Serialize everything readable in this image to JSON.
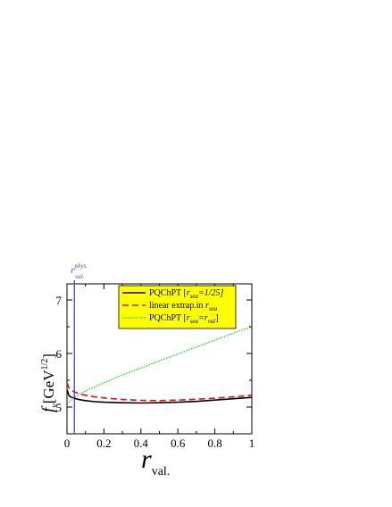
{
  "chart_data": {
    "type": "line",
    "xlabel": {
      "main": "r",
      "sub": "val."
    },
    "ylabel": {
      "f": "f",
      "sub": "v",
      "unit": "[GeV",
      "exp": "1/2",
      "close": "]"
    },
    "xlim": [
      0,
      1
    ],
    "ylim": [
      4.5,
      7.3
    ],
    "x_ticks": [
      0,
      0.2,
      0.4,
      0.6,
      0.8,
      1
    ],
    "x_tick_labels": [
      "0",
      "0.2",
      "0.4",
      "0.6",
      "0.8",
      "1"
    ],
    "y_ticks": [
      5,
      6,
      7
    ],
    "y_tick_labels": [
      "5",
      "6",
      "7"
    ],
    "vertical_line": {
      "x": 0.04,
      "color": "#5a3fd6",
      "label": {
        "main": "r",
        "sup": "phys.",
        "sub": "val."
      }
    },
    "legend": {
      "placement": "top-center",
      "background": "#ffff00",
      "entries": [
        {
          "series": 0,
          "text": "PQChPT [",
          "r": "r",
          "rsub": "sea",
          "rest": "=1/25]"
        },
        {
          "series": 1,
          "text": "linear extrap.in ",
          "r": "r",
          "rsub": "sea",
          "rest": ""
        },
        {
          "series": 2,
          "text": "PQChPT  [",
          "r": "r",
          "rsub": "sea",
          "rest": "=",
          "r2": "r",
          "r2sub": "val",
          "end": "]"
        }
      ]
    },
    "series": [
      {
        "color": "#000000",
        "dash": "",
        "width": 1.6,
        "x": [
          0.001,
          0.01,
          0.02,
          0.04,
          0.06,
          0.08,
          0.1,
          0.15,
          0.2,
          0.3,
          0.4,
          0.5,
          0.6,
          0.7,
          0.8,
          0.9,
          1.0
        ],
        "y": [
          5.32,
          5.22,
          5.19,
          5.16,
          5.145,
          5.13,
          5.12,
          5.1,
          5.09,
          5.08,
          5.075,
          5.08,
          5.09,
          5.105,
          5.13,
          5.155,
          5.18
        ]
      },
      {
        "color": "#e01010",
        "dash": "7,4",
        "width": 1.6,
        "x": [
          0.001,
          0.01,
          0.02,
          0.04,
          0.06,
          0.08,
          0.1,
          0.15,
          0.2,
          0.3,
          0.4,
          0.5,
          0.6,
          0.7,
          0.8,
          0.9,
          1.0
        ],
        "y": [
          5.45,
          5.36,
          5.32,
          5.28,
          5.255,
          5.235,
          5.22,
          5.19,
          5.17,
          5.14,
          5.125,
          5.12,
          5.13,
          5.145,
          5.165,
          5.19,
          5.22
        ]
      },
      {
        "color": "#22cc22",
        "dash": "1.5,1.5",
        "width": 1.3,
        "x": [
          0.001,
          0.02,
          0.04,
          0.08,
          0.1,
          0.2,
          0.3,
          0.4,
          0.5,
          0.6,
          0.7,
          0.8,
          0.9,
          1.0
        ],
        "y": [
          5.05,
          5.12,
          5.18,
          5.26,
          5.3,
          5.45,
          5.6,
          5.73,
          5.86,
          5.99,
          6.12,
          6.25,
          6.38,
          6.5
        ]
      }
    ]
  }
}
